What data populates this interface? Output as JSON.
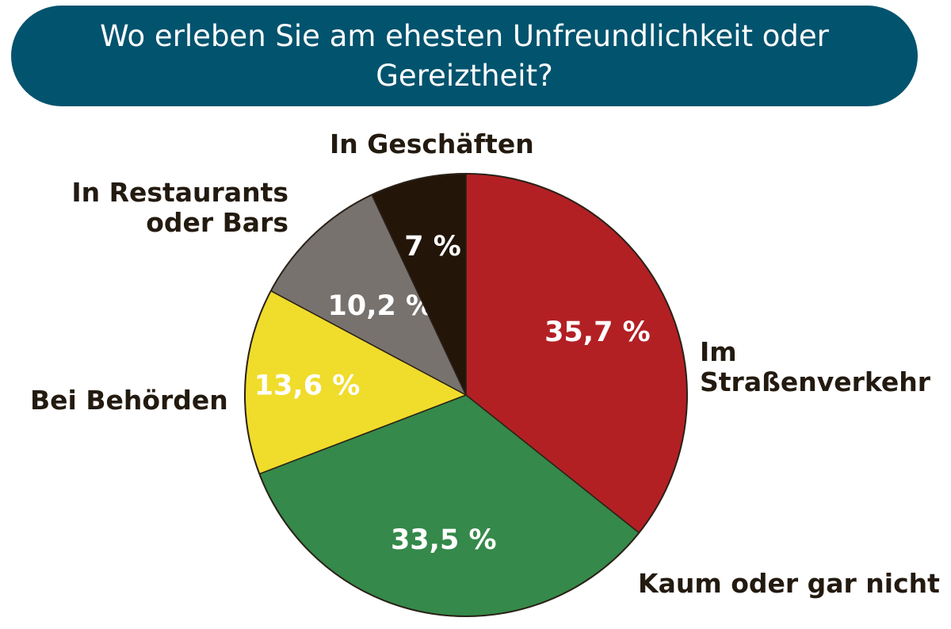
{
  "title": "Wo erleben Sie am ehesten Unfreundlichkeit oder Gereiztheit?",
  "colors": {
    "banner": "#01536e",
    "label_text": "#231a10"
  },
  "chart_data": {
    "type": "pie",
    "title": "Wo erleben Sie am ehesten Unfreundlichkeit oder Gereiztheit?",
    "start": "12 o'clock",
    "direction": "clockwise",
    "slices": [
      {
        "label": "Im\nStraßenverkehr",
        "value": 35.7,
        "value_label": "35,7 %",
        "color": "#b22024",
        "value_color": "#ffffff"
      },
      {
        "label": "Kaum oder gar nicht",
        "value": 33.5,
        "value_label": "33,5 %",
        "color": "#35894a",
        "value_color": "#ffffff"
      },
      {
        "label": "Bei Behörden",
        "value": 13.6,
        "value_label": "13,6 %",
        "color": "#f0dc2b",
        "value_color": "#ffffff"
      },
      {
        "label": "In Restaurants\noder Bars",
        "value": 10.2,
        "value_label": "10,2 %",
        "color": "#77726e",
        "value_color": "#ffffff"
      },
      {
        "label": "In Geschäften",
        "value": 7,
        "value_label": "7 %",
        "color": "#231508",
        "value_color": "#ffffff"
      }
    ]
  }
}
